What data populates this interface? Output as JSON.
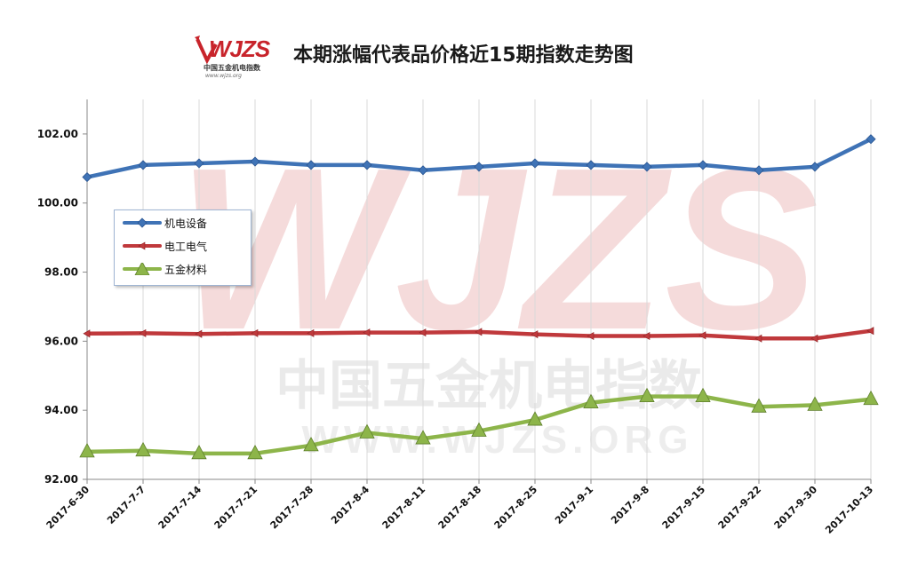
{
  "logo": {
    "main": "WJZS",
    "cn": "中国五金机电指数",
    "url": "www.wjzs.org"
  },
  "title": "本期涨幅代表品价格近15期指数走势图",
  "watermark": {
    "main": "WJZS",
    "cn": "中国五金机电指数",
    "url": "WWW.WJZS.ORG"
  },
  "chart_data": {
    "type": "line",
    "title": "本期涨幅代表品价格近15期指数走势图",
    "categories": [
      "2017-6-30",
      "2017-7-7",
      "2017-7-14",
      "2017-7-21",
      "2017-7-28",
      "2017-8-4",
      "2017-8-11",
      "2017-8-18",
      "2017-8-25",
      "2017-9-1",
      "2017-9-8",
      "2017-9-15",
      "2017-9-22",
      "2017-9-30",
      "2017-10-13"
    ],
    "ylim": [
      92.0,
      103.0
    ],
    "yticks": [
      "92.00",
      "94.00",
      "96.00",
      "98.00",
      "100.00",
      "102.00"
    ],
    "grid": "vertical",
    "legend_position": "left",
    "series": [
      {
        "name": "机电设备",
        "color": "#3f73b6",
        "marker": "diamond",
        "values": [
          100.75,
          101.1,
          101.15,
          101.2,
          101.1,
          101.1,
          100.95,
          101.05,
          101.15,
          101.1,
          101.05,
          101.1,
          100.95,
          101.05,
          101.85
        ]
      },
      {
        "name": "电工电气",
        "color": "#c0393c",
        "marker": "arrow-left",
        "values": [
          96.22,
          96.23,
          96.21,
          96.23,
          96.23,
          96.25,
          96.25,
          96.27,
          96.2,
          96.15,
          96.15,
          96.17,
          96.08,
          96.08,
          96.3
        ]
      },
      {
        "name": "五金材料",
        "color": "#8db54a",
        "marker": "triangle",
        "values": [
          92.8,
          92.83,
          92.75,
          92.75,
          92.98,
          93.35,
          93.18,
          93.4,
          93.72,
          94.22,
          94.4,
          94.4,
          94.1,
          94.15,
          94.32
        ]
      }
    ]
  }
}
